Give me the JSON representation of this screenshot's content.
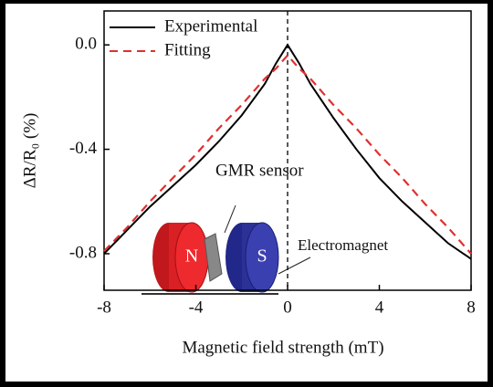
{
  "chart_data": {
    "type": "line",
    "x": [
      -8,
      -7,
      -6,
      -5,
      -4,
      -3,
      -2,
      -1,
      -0.5,
      0,
      0.5,
      1,
      2,
      3,
      4,
      5,
      6,
      7,
      8
    ],
    "series": [
      {
        "name": "Experimental",
        "color": "#000000",
        "dash": false,
        "values": [
          -0.8,
          -0.71,
          -0.62,
          -0.54,
          -0.46,
          -0.37,
          -0.27,
          -0.15,
          -0.07,
          0.0,
          -0.07,
          -0.15,
          -0.28,
          -0.4,
          -0.51,
          -0.6,
          -0.68,
          -0.76,
          -0.82
        ]
      },
      {
        "name": "Fitting",
        "color": "#e0302f",
        "dash": true,
        "values": [
          -0.79,
          -0.7,
          -0.6,
          -0.51,
          -0.42,
          -0.32,
          -0.23,
          -0.13,
          -0.09,
          -0.04,
          -0.09,
          -0.13,
          -0.23,
          -0.32,
          -0.42,
          -0.51,
          -0.61,
          -0.7,
          -0.8
        ]
      }
    ],
    "xlabel": "Magnetic field strength (mT)",
    "ylabel": "ΔR/R₀ (%)",
    "xlim": [
      -8,
      8
    ],
    "xticks": [
      -8,
      -4,
      0,
      4,
      8
    ],
    "ylim": [
      -0.94,
      0.13
    ],
    "yticks": [
      {
        "value": 0,
        "label": "0.0"
      },
      -0.4,
      -0.8
    ],
    "legend": "upper left",
    "annotations": {
      "sensor": "GMR sensor",
      "magnet": "Electromagnet",
      "north": "N",
      "south": "S"
    }
  }
}
